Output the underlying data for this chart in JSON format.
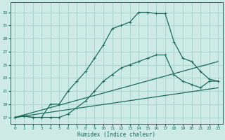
{
  "xlabel": "Humidex (Indice chaleur)",
  "background_color": "#cdeae4",
  "grid_color": "#a8d4cc",
  "line_color": "#1a6b5a",
  "xlim": [
    -0.5,
    23.5
  ],
  "ylim": [
    16,
    34.5
  ],
  "yticks": [
    17,
    19,
    21,
    23,
    25,
    27,
    29,
    31,
    33
  ],
  "xticks": [
    0,
    1,
    2,
    3,
    4,
    5,
    6,
    7,
    8,
    9,
    10,
    11,
    12,
    13,
    14,
    15,
    16,
    17,
    18,
    19,
    20,
    21,
    22,
    23
  ],
  "line1_x": [
    0,
    1,
    2,
    3,
    4,
    5,
    6,
    7,
    8,
    9,
    10,
    11,
    12,
    13,
    14,
    15,
    16,
    17,
    18,
    19,
    20,
    21,
    22,
    23
  ],
  "line1_y": [
    17.0,
    17.2,
    17.0,
    17.0,
    19.0,
    19.0,
    21.0,
    22.5,
    24.0,
    26.0,
    28.0,
    30.5,
    31.0,
    31.5,
    33.0,
    33.0,
    32.8,
    32.8,
    28.5,
    26.0,
    25.5,
    24.0,
    22.8,
    22.5
  ],
  "line2_x": [
    0,
    1,
    2,
    3,
    4,
    5,
    6,
    7,
    8,
    9,
    10,
    11,
    12,
    13,
    14,
    15,
    16,
    17,
    18,
    19,
    20,
    21,
    22,
    23
  ],
  "line2_y": [
    17.0,
    17.2,
    17.0,
    17.0,
    17.0,
    17.0,
    17.5,
    18.5,
    19.5,
    21.0,
    22.5,
    23.5,
    24.5,
    25.0,
    25.5,
    26.0,
    26.5,
    26.5,
    23.5,
    22.5,
    22.0,
    21.5,
    22.5,
    22.5
  ],
  "line3_x": [
    0,
    23
  ],
  "line3_y": [
    17.0,
    25.5
  ],
  "line4_x": [
    0,
    23
  ],
  "line4_y": [
    17.0,
    21.5
  ]
}
